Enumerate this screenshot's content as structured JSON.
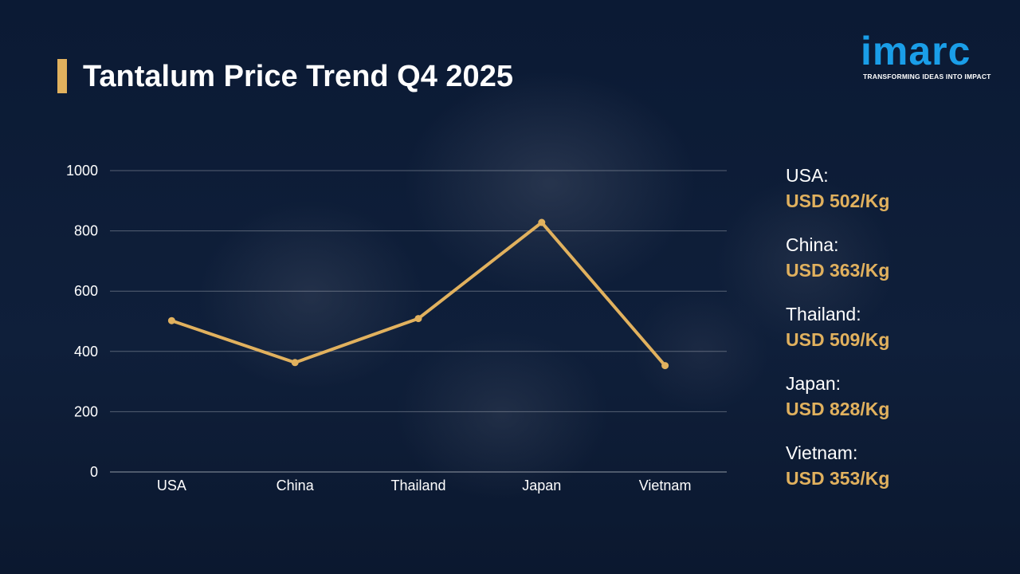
{
  "title": "Tantalum Price Trend Q4 2025",
  "logo": {
    "word": "imarc",
    "tagline": "TRANSFORMING IDEAS INTO IMPACT"
  },
  "colors": {
    "background": "#0b1a33",
    "accent": "#e1b15e",
    "logo_blue": "#1a9ee8",
    "text": "#ffffff"
  },
  "chart_data": {
    "type": "line",
    "categories": [
      "USA",
      "China",
      "Thailand",
      "Japan",
      "Vietnam"
    ],
    "series": [
      {
        "values": [
          502,
          363,
          509,
          828,
          353
        ]
      }
    ],
    "ylim": [
      0,
      1000
    ],
    "yticks": [
      0,
      200,
      400,
      600,
      800,
      1000
    ],
    "grid": true,
    "xlabel": "",
    "ylabel": ""
  },
  "legend": [
    {
      "country": "USA:",
      "value": "USD 502/Kg"
    },
    {
      "country": "China:",
      "value": "USD 363/Kg"
    },
    {
      "country": "Thailand:",
      "value": "USD 509/Kg"
    },
    {
      "country": "Japan:",
      "value": "USD 828/Kg"
    },
    {
      "country": "Vietnam:",
      "value": "USD 353/Kg"
    }
  ]
}
